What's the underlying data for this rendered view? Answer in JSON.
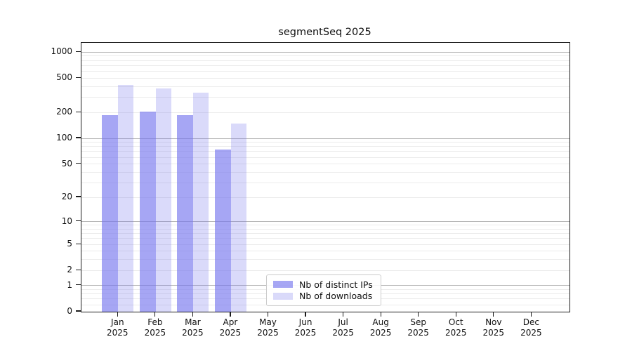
{
  "chart_data": {
    "type": "bar",
    "title": "segmentSeq 2025",
    "x": {
      "categories": [
        "Jan",
        "Feb",
        "Mar",
        "Apr",
        "May",
        "Jun",
        "Jul",
        "Aug",
        "Sep",
        "Oct",
        "Nov",
        "Dec"
      ],
      "year": "2025"
    },
    "y": {
      "ticks": [
        0,
        1,
        2,
        5,
        10,
        20,
        50,
        100,
        200,
        500,
        1000
      ],
      "scale": "symlog",
      "top_value": 1282,
      "grid": true
    },
    "series": [
      {
        "name": "Nb of distinct IPs",
        "color": "#7777ee",
        "opacity": 0.65,
        "values": [
          185,
          205,
          188,
          74,
          0,
          0,
          0,
          0,
          0,
          0,
          0,
          0
        ]
      },
      {
        "name": "Nb of downloads",
        "color": "#7777ee",
        "opacity": 0.27,
        "values": [
          420,
          380,
          342,
          150,
          0,
          0,
          0,
          0,
          0,
          0,
          0,
          0
        ]
      }
    ],
    "legend": {
      "items": [
        "Nb of distinct IPs",
        "Nb of downloads"
      ],
      "position": "bottom-center"
    },
    "colors": {
      "bar_base": "#7777ee",
      "grid_major": "#b6b6b6",
      "grid_minor": "#ebebeb",
      "axis": "#1c1c1c"
    }
  }
}
